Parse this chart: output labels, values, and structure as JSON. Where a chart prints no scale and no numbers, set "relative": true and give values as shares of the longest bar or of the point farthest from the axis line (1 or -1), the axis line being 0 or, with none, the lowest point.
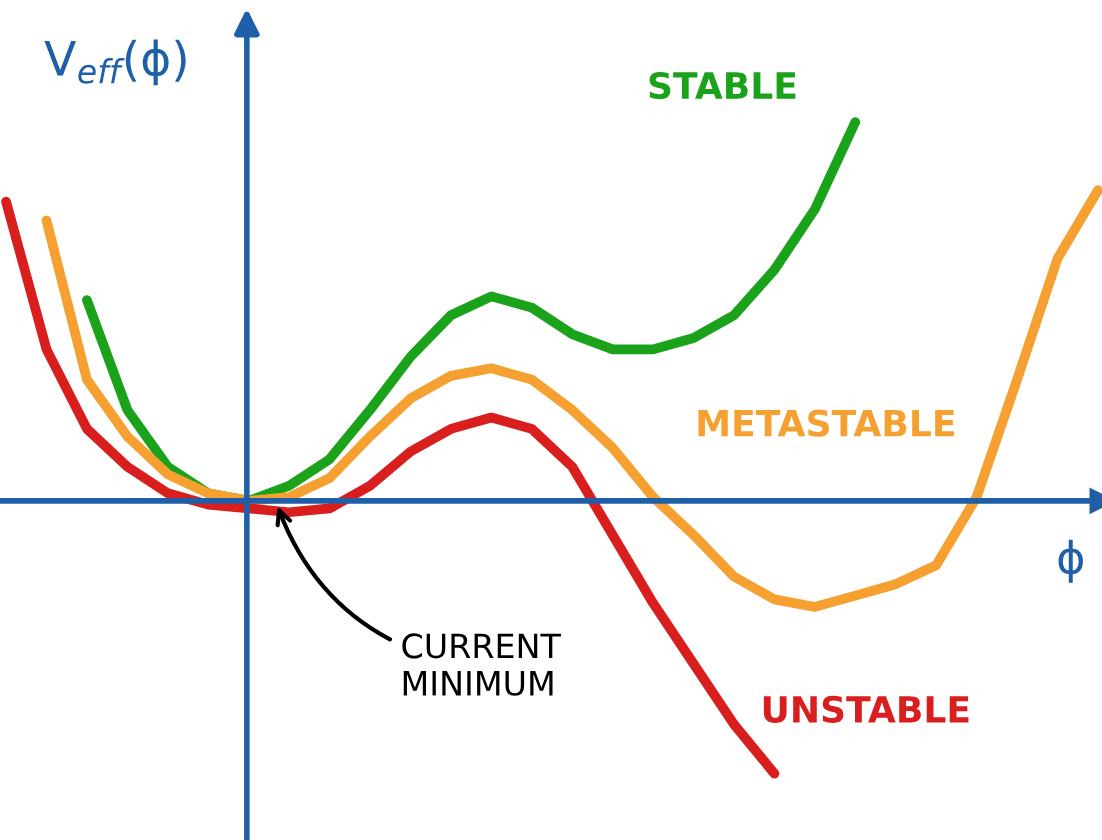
{
  "chart_data": {
    "type": "line",
    "relative": true,
    "xlabel": "ϕ",
    "ylabel": "V$_{eff}$(ϕ)",
    "categories": [
      null,
      null,
      null,
      null,
      null,
      null,
      null,
      null,
      null,
      null,
      null,
      null,
      null,
      null,
      null,
      null,
      null,
      null,
      null,
      null,
      null,
      null,
      null,
      null,
      null,
      null,
      null,
      null
    ],
    "series": [
      {
        "name": "STABLE",
        "color": "#1aa31a",
        "values": [
          null,
          null,
          0.53,
          0.24,
          0.09,
          0.02,
          0,
          0.04,
          0.11,
          0.24,
          0.38,
          0.49,
          0.54,
          0.51,
          0.44,
          0.4,
          0.4,
          0.43,
          0.49,
          0.61,
          0.77,
          1.0,
          null,
          null,
          null,
          null,
          null,
          null
        ]
      },
      {
        "name": "METASTABLE",
        "color": "#f5a030",
        "values": [
          null,
          0.74,
          0.32,
          0.17,
          0.07,
          0.02,
          0,
          0.01,
          0.06,
          0.17,
          0.27,
          0.33,
          0.35,
          0.32,
          0.24,
          0.14,
          0.01,
          -0.09,
          -0.2,
          -0.26,
          -0.28,
          -0.25,
          -0.22,
          -0.17,
          0.01,
          0.32,
          0.64,
          0.82
        ]
      },
      {
        "name": "UNSTABLE",
        "color": "#d91e1e",
        "values": [
          0.79,
          0.4,
          0.19,
          0.09,
          0.02,
          -0.01,
          -0.02,
          -0.03,
          -0.02,
          0.04,
          0.13,
          0.19,
          0.22,
          0.19,
          0.09,
          -0.09,
          -0.27,
          -0.43,
          -0.59,
          -0.72,
          null,
          null,
          null,
          null,
          null,
          null,
          null,
          null
        ]
      }
    ],
    "annotations": [
      "CURRENT\nMINIMUM"
    ],
    "ref_lines": [
      {
        "axis": "y",
        "value": 0,
        "color": "#1f5fa8"
      }
    ],
    "line_style": "solid",
    "marker": "none",
    "grid": false,
    "legend": false
  }
}
